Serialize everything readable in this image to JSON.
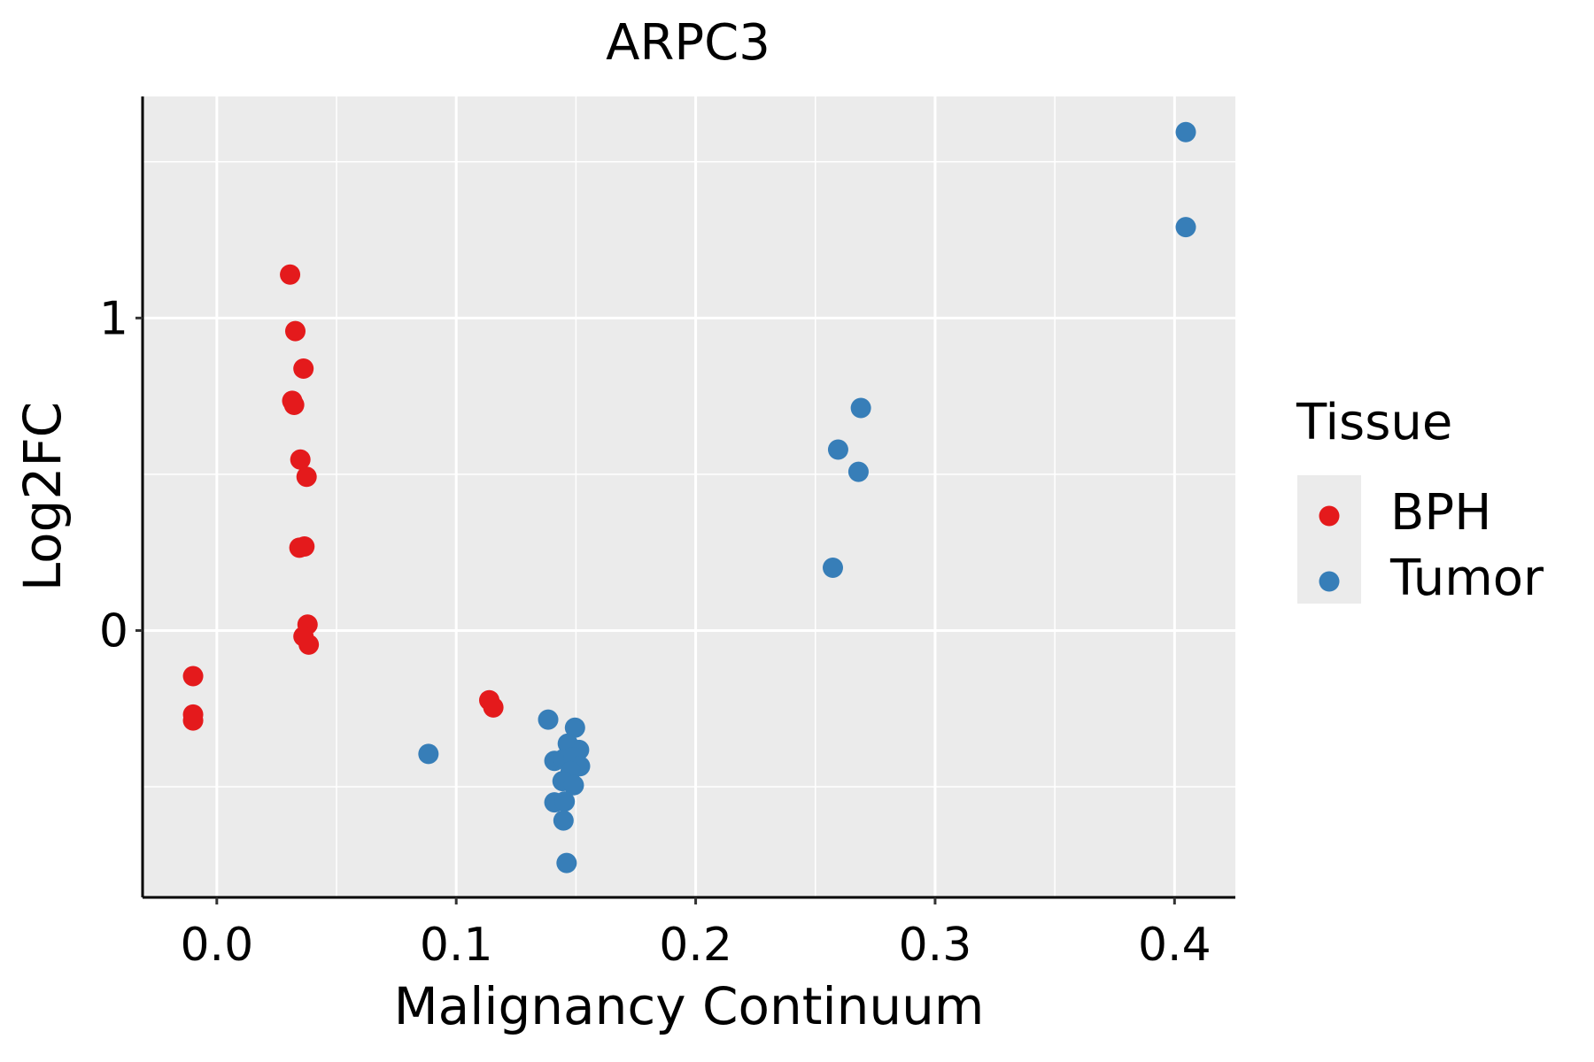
{
  "chart_data": {
    "type": "scatter",
    "title": "ARPC3",
    "xlabel": "Malignancy Continuum",
    "ylabel": "Log2FC",
    "xlim": [
      -0.031,
      0.4254
    ],
    "ylim": [
      -0.854,
      1.709
    ],
    "xticks": [
      0.0,
      0.1,
      0.2,
      0.3,
      0.4
    ],
    "xtick_labels": [
      "0.0",
      "0.1",
      "0.2",
      "0.3",
      "0.4"
    ],
    "xminor": [
      0.05,
      0.15,
      0.25,
      0.35
    ],
    "yticks": [
      0,
      1
    ],
    "ytick_labels": [
      "0",
      "1"
    ],
    "yminor": [
      -0.5,
      0.5,
      1.5
    ],
    "grid": true,
    "legend": {
      "title": "Tissue",
      "position": "right"
    },
    "series": [
      {
        "name": "BPH",
        "color": "#E41A1C",
        "points": [
          [
            0.0306,
            1.139
          ],
          [
            0.0328,
            0.958
          ],
          [
            0.0362,
            0.838
          ],
          [
            0.0315,
            0.735
          ],
          [
            0.0323,
            0.722
          ],
          [
            0.0349,
            0.547
          ],
          [
            0.0375,
            0.492
          ],
          [
            0.0345,
            0.265
          ],
          [
            0.0366,
            0.269
          ],
          [
            0.0379,
            0.019
          ],
          [
            0.0362,
            -0.019
          ],
          [
            0.0384,
            -0.045
          ],
          [
            -0.0099,
            -0.146
          ],
          [
            -0.0099,
            -0.269
          ],
          [
            -0.0099,
            -0.288
          ],
          [
            0.1138,
            -0.223
          ],
          [
            0.1155,
            -0.246
          ]
        ]
      },
      {
        "name": "Tumor",
        "color": "#377EB8",
        "points": [
          [
            0.4047,
            1.595
          ],
          [
            0.4047,
            1.291
          ],
          [
            0.269,
            0.712
          ],
          [
            0.2595,
            0.579
          ],
          [
            0.268,
            0.508
          ],
          [
            0.2573,
            0.201
          ],
          [
            0.0884,
            -0.395
          ],
          [
            0.1384,
            -0.285
          ],
          [
            0.1496,
            -0.311
          ],
          [
            0.1466,
            -0.362
          ],
          [
            0.1513,
            -0.382
          ],
          [
            0.141,
            -0.417
          ],
          [
            0.1448,
            -0.411
          ],
          [
            0.149,
            -0.405
          ],
          [
            0.1517,
            -0.434
          ],
          [
            0.1478,
            -0.45
          ],
          [
            0.1444,
            -0.482
          ],
          [
            0.1491,
            -0.495
          ],
          [
            0.141,
            -0.55
          ],
          [
            0.1453,
            -0.547
          ],
          [
            0.1448,
            -0.608
          ],
          [
            0.1461,
            -0.744
          ]
        ]
      }
    ]
  }
}
